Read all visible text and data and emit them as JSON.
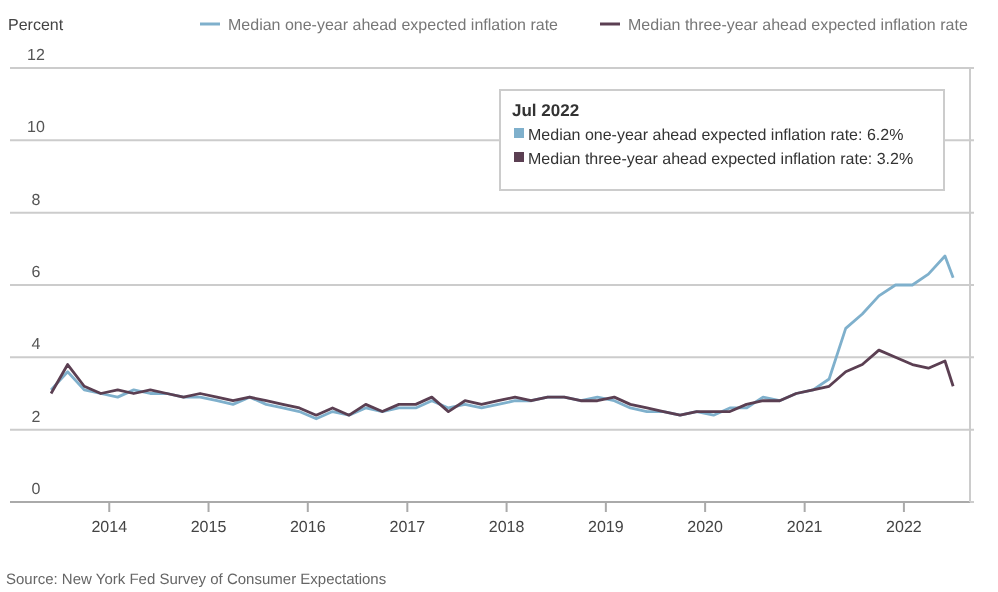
{
  "chart_data": {
    "type": "line",
    "ylabel": "Percent",
    "x": [
      "2013-06",
      "2013-08",
      "2013-10",
      "2013-12",
      "2014-02",
      "2014-04",
      "2014-06",
      "2014-08",
      "2014-10",
      "2014-12",
      "2015-02",
      "2015-04",
      "2015-06",
      "2015-08",
      "2015-10",
      "2015-12",
      "2016-02",
      "2016-04",
      "2016-06",
      "2016-08",
      "2016-10",
      "2016-12",
      "2017-02",
      "2017-04",
      "2017-06",
      "2017-08",
      "2017-10",
      "2017-12",
      "2018-02",
      "2018-04",
      "2018-06",
      "2018-08",
      "2018-10",
      "2018-12",
      "2019-02",
      "2019-04",
      "2019-06",
      "2019-08",
      "2019-10",
      "2019-12",
      "2020-02",
      "2020-04",
      "2020-06",
      "2020-08",
      "2020-10",
      "2020-12",
      "2021-02",
      "2021-04",
      "2021-06",
      "2021-08",
      "2021-10",
      "2021-12",
      "2022-02",
      "2022-04",
      "2022-06",
      "2022-07"
    ],
    "series": [
      {
        "name": "Median one-year ahead expected inflation rate",
        "color": "#7fb0cc",
        "values": [
          3.1,
          3.6,
          3.1,
          3.0,
          2.9,
          3.1,
          3.0,
          3.0,
          2.9,
          2.9,
          2.8,
          2.7,
          2.9,
          2.7,
          2.6,
          2.5,
          2.3,
          2.5,
          2.4,
          2.6,
          2.5,
          2.6,
          2.6,
          2.8,
          2.6,
          2.7,
          2.6,
          2.7,
          2.8,
          2.8,
          2.9,
          2.9,
          2.8,
          2.9,
          2.8,
          2.6,
          2.5,
          2.5,
          2.4,
          2.5,
          2.4,
          2.6,
          2.6,
          2.9,
          2.8,
          3.0,
          3.1,
          3.4,
          4.8,
          5.2,
          5.7,
          6.0,
          6.0,
          6.3,
          6.8,
          6.2
        ]
      },
      {
        "name": "Median three-year ahead expected inflation rate",
        "color": "#5b3f52",
        "values": [
          3.0,
          3.8,
          3.2,
          3.0,
          3.1,
          3.0,
          3.1,
          3.0,
          2.9,
          3.0,
          2.9,
          2.8,
          2.9,
          2.8,
          2.7,
          2.6,
          2.4,
          2.6,
          2.4,
          2.7,
          2.5,
          2.7,
          2.7,
          2.9,
          2.5,
          2.8,
          2.7,
          2.8,
          2.9,
          2.8,
          2.9,
          2.9,
          2.8,
          2.8,
          2.9,
          2.7,
          2.6,
          2.5,
          2.4,
          2.5,
          2.5,
          2.5,
          2.7,
          2.8,
          2.8,
          3.0,
          3.1,
          3.2,
          3.6,
          3.8,
          4.2,
          4.0,
          3.8,
          3.7,
          3.9,
          3.2
        ]
      }
    ],
    "xlim": [
      "2013-01",
      "2022-09"
    ],
    "xticks": [
      {
        "value": "2014",
        "label": "2014"
      },
      {
        "value": "2015",
        "label": "2015"
      },
      {
        "value": "2016",
        "label": "2016"
      },
      {
        "value": "2017",
        "label": "2017"
      },
      {
        "value": "2018",
        "label": "2018"
      },
      {
        "value": "2019",
        "label": "2019"
      },
      {
        "value": "2020",
        "label": "2020"
      },
      {
        "value": "2021",
        "label": "2021"
      },
      {
        "value": "2022",
        "label": "2022"
      }
    ],
    "ylim": [
      0,
      12
    ],
    "yticks": [
      0,
      2,
      4,
      6,
      8,
      10,
      12
    ],
    "grid": "y",
    "legend": "top",
    "marker": "none",
    "line_style": "solid",
    "annotations": [
      "Jul 2022",
      "Median one-year ahead expected inflation rate: 6.2%",
      "Median three-year ahead expected inflation rate: 3.2%",
      "Source: New York Fed Survey of Consumer Expectations"
    ]
  }
}
